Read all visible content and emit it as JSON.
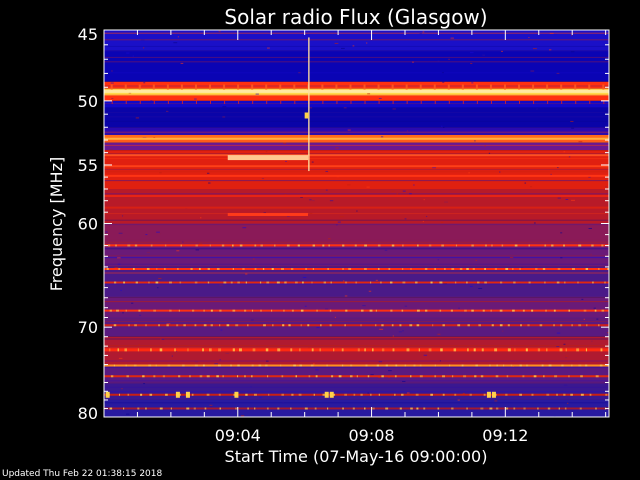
{
  "footer": {
    "updated_text": "Updated Thu Feb 22 01:38:15 2018"
  },
  "chart_data": {
    "type": "heatmap",
    "title": "Solar radio Flux (Glasgow)",
    "xlabel": "Start Time (07-May-16 09:00:00)",
    "ylabel": "Frequency [MHz]",
    "xlim": [
      0,
      15.1
    ],
    "ylim": [
      45,
      80
    ],
    "y_scale": "log",
    "y_inverted": true,
    "x_ticks": [
      {
        "label": "09:04",
        "value": 4
      },
      {
        "label": "09:08",
        "value": 8
      },
      {
        "label": "09:12",
        "value": 12
      }
    ],
    "y_ticks": [
      {
        "label": "45",
        "value": 45
      },
      {
        "label": "50",
        "value": 50
      },
      {
        "label": "55",
        "value": 55
      },
      {
        "label": "60",
        "value": 60
      },
      {
        "label": "70",
        "value": 70
      },
      {
        "label": "80",
        "value": 80
      }
    ],
    "colors": {
      "background": "#000000",
      "frame": "#ffffff",
      "low": "#0a0aa0",
      "mid": "#5a1a9a",
      "high": "#c81414",
      "peak": "#ffd24a"
    },
    "bands": [
      {
        "from": 45.0,
        "to": 46.4,
        "color": "#1a10c8"
      },
      {
        "from": 46.4,
        "to": 48.6,
        "color": "#0a04b4"
      },
      {
        "from": 48.6,
        "to": 49.1,
        "color": "#ff3010"
      },
      {
        "from": 49.1,
        "to": 49.6,
        "color": "#ffd84a"
      },
      {
        "from": 49.6,
        "to": 50.0,
        "color": "#ff3010"
      },
      {
        "from": 50.0,
        "to": 50.5,
        "color": "#1208c8"
      },
      {
        "from": 50.5,
        "to": 52.0,
        "color": "#0a04a8"
      },
      {
        "from": 52.0,
        "to": 52.6,
        "color": "#2a0ab0"
      },
      {
        "from": 52.6,
        "to": 53.2,
        "color": "#ff6a1a"
      },
      {
        "from": 53.2,
        "to": 53.8,
        "color": "#6a1890"
      },
      {
        "from": 53.8,
        "to": 57.0,
        "color": "#e02010"
      },
      {
        "from": 57.0,
        "to": 60.0,
        "color": "#b81a28"
      },
      {
        "from": 60.0,
        "to": 62.0,
        "color": "#8a1a58"
      },
      {
        "from": 62.0,
        "to": 64.0,
        "color": "#6a1a78"
      },
      {
        "from": 64.0,
        "to": 67.0,
        "color": "#4a1a88"
      },
      {
        "from": 67.0,
        "to": 69.0,
        "color": "#6a1a78"
      },
      {
        "from": 69.0,
        "to": 71.0,
        "color": "#5a1a80"
      },
      {
        "from": 71.0,
        "to": 74.0,
        "color": "#b01a30"
      },
      {
        "from": 74.0,
        "to": 76.0,
        "color": "#5a1a80"
      },
      {
        "from": 76.0,
        "to": 78.0,
        "color": "#3a1890"
      },
      {
        "from": 78.0,
        "to": 80.0,
        "color": "#281aa0"
      }
    ],
    "lines": [
      {
        "freq": 49.3,
        "color": "#ffe8a0",
        "width": 3
      },
      {
        "freq": 52.9,
        "color": "#ffb040",
        "width": 2
      },
      {
        "freq": 54.2,
        "color": "#ff5020",
        "width": 2
      },
      {
        "freq": 55.1,
        "color": "#ff4018",
        "width": 2
      },
      {
        "freq": 55.9,
        "color": "#ff3414",
        "width": 2
      },
      {
        "freq": 57.6,
        "color": "#e82414",
        "width": 2
      },
      {
        "freq": 58.6,
        "color": "#d82014",
        "width": 2
      },
      {
        "freq": 62.0,
        "color": "#ff3010",
        "width": 2
      },
      {
        "freq": 64.2,
        "color": "#ff3010",
        "width": 2
      },
      {
        "freq": 65.5,
        "color": "#e02810",
        "width": 2
      },
      {
        "freq": 68.3,
        "color": "#ff3010",
        "width": 2
      },
      {
        "freq": 69.8,
        "color": "#d02018",
        "width": 2
      },
      {
        "freq": 72.4,
        "color": "#ff2a10",
        "width": 3
      },
      {
        "freq": 74.1,
        "color": "#ff9020",
        "width": 2
      },
      {
        "freq": 75.3,
        "color": "#e02810",
        "width": 2
      },
      {
        "freq": 77.4,
        "color": "#c82014",
        "width": 2
      },
      {
        "freq": 79.0,
        "color": "#a01a30",
        "width": 2
      }
    ],
    "features": [
      {
        "t_start": 3.7,
        "t_end": 6.1,
        "freq": 54.4,
        "color": "#ffc890",
        "width": 5
      },
      {
        "t_start": 3.7,
        "t_end": 6.1,
        "freq": 59.2,
        "color": "#ff3a1a",
        "width": 3
      },
      {
        "t_start": 6.1,
        "t_end": 6.15,
        "freq": 45.5,
        "freq_end": 55.5,
        "color": "#ffe0a0",
        "width": 1
      }
    ],
    "bursts": [
      {
        "t": 0.05,
        "freq": 77.4
      },
      {
        "t": 2.15,
        "freq": 77.4
      },
      {
        "t": 2.45,
        "freq": 77.4
      },
      {
        "t": 3.9,
        "freq": 77.4
      },
      {
        "t": 6.6,
        "freq": 77.4
      },
      {
        "t": 6.75,
        "freq": 77.4
      },
      {
        "t": 11.45,
        "freq": 77.4
      },
      {
        "t": 11.6,
        "freq": 77.4
      },
      {
        "t": 6.0,
        "freq": 51.1
      }
    ]
  }
}
